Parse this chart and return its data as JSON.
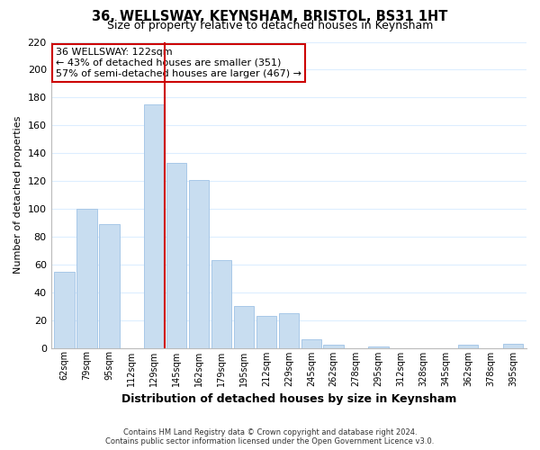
{
  "title": "36, WELLSWAY, KEYNSHAM, BRISTOL, BS31 1HT",
  "subtitle": "Size of property relative to detached houses in Keynsham",
  "xlabel": "Distribution of detached houses by size in Keynsham",
  "ylabel": "Number of detached properties",
  "bar_color": "#c8ddf0",
  "bar_edge_color": "#a8c8e8",
  "marker_line_color": "#cc0000",
  "annotation_title": "36 WELLSWAY: 122sqm",
  "annotation_line1": "← 43% of detached houses are smaller (351)",
  "annotation_line2": "57% of semi-detached houses are larger (467) →",
  "annotation_box_color": "#ffffff",
  "annotation_box_edge": "#cc0000",
  "categories": [
    "62sqm",
    "79sqm",
    "95sqm",
    "112sqm",
    "129sqm",
    "145sqm",
    "162sqm",
    "179sqm",
    "195sqm",
    "212sqm",
    "229sqm",
    "245sqm",
    "262sqm",
    "278sqm",
    "295sqm",
    "312sqm",
    "328sqm",
    "345sqm",
    "362sqm",
    "378sqm",
    "395sqm"
  ],
  "values": [
    55,
    100,
    89,
    0,
    175,
    133,
    121,
    63,
    30,
    23,
    25,
    6,
    2,
    0,
    1,
    0,
    0,
    0,
    2,
    0,
    3
  ],
  "ylim": [
    0,
    220
  ],
  "yticks": [
    0,
    20,
    40,
    60,
    80,
    100,
    120,
    140,
    160,
    180,
    200,
    220
  ],
  "footer1": "Contains HM Land Registry data © Crown copyright and database right 2024.",
  "footer2": "Contains public sector information licensed under the Open Government Licence v3.0.",
  "bg_color": "#ffffff",
  "grid_color": "#ddeeff"
}
